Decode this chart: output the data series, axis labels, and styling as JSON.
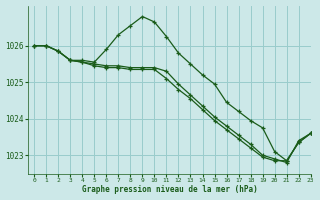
{
  "title": "Graphe pression niveau de la mer (hPa)",
  "background_color": "#cce8e8",
  "grid_color": "#99cccc",
  "line_color": "#1a5c1a",
  "xlim": [
    -0.5,
    23
  ],
  "ylim": [
    1022.5,
    1027.1
  ],
  "yticks": [
    1023,
    1024,
    1025,
    1026
  ],
  "xticks": [
    0,
    1,
    2,
    3,
    4,
    5,
    6,
    7,
    8,
    9,
    10,
    11,
    12,
    13,
    14,
    15,
    16,
    17,
    18,
    19,
    20,
    21,
    22,
    23
  ],
  "series": [
    [
      1026.0,
      1026.0,
      1025.85,
      1025.6,
      1025.6,
      1025.55,
      1025.9,
      1026.3,
      1026.55,
      1026.8,
      1026.65,
      1026.25,
      1025.8,
      1025.5,
      1025.2,
      1024.95,
      1024.45,
      1024.2,
      1023.95,
      1023.75,
      1023.1,
      1022.85,
      1023.35,
      1023.6
    ],
    [
      1026.0,
      1026.0,
      1025.85,
      1025.6,
      1025.55,
      1025.45,
      1025.4,
      1025.4,
      1025.35,
      1025.35,
      1025.35,
      1025.1,
      1024.8,
      1024.55,
      1024.25,
      1023.95,
      1023.7,
      1023.45,
      1023.2,
      1022.95,
      1022.85,
      1022.85,
      1023.35,
      1023.6
    ],
    [
      1026.0,
      1026.0,
      1025.85,
      1025.6,
      1025.55,
      1025.5,
      1025.45,
      1025.45,
      1025.4,
      1025.4,
      1025.4,
      1025.3,
      1024.95,
      1024.65,
      1024.35,
      1024.05,
      1023.8,
      1023.55,
      1023.3,
      1023.0,
      1022.9,
      1022.8,
      1023.4,
      1023.6
    ]
  ]
}
